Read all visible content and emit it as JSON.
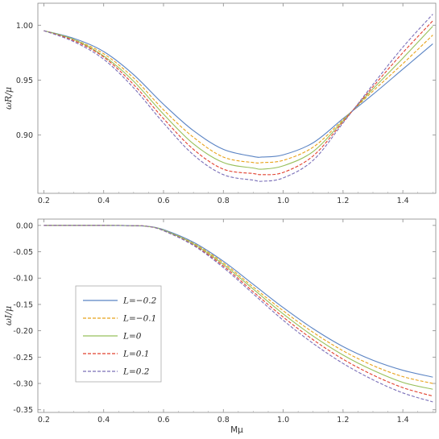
{
  "chart_data": [
    {
      "type": "line",
      "xlabel": "",
      "ylabel": "ωR/μ",
      "xlim": [
        0.18,
        1.51
      ],
      "ylim": [
        0.847,
        1.02
      ],
      "x_ticks": [
        0.2,
        0.4,
        0.6,
        0.8,
        1.0,
        1.2,
        1.4
      ],
      "x_tick_labels": [
        "0.2",
        "0.4",
        "0.6",
        "0.8",
        "1.0",
        "1.2",
        "1.4"
      ],
      "y_ticks": [
        0.9,
        0.95,
        1.0
      ],
      "y_tick_labels": [
        "0.90",
        "0.95",
        "1.00"
      ],
      "grid": false,
      "series": [
        {
          "name": "L=−0.2",
          "color": "#5b84c4",
          "dash": "solid",
          "x": [
            0.2,
            0.3,
            0.4,
            0.5,
            0.6,
            0.7,
            0.8,
            0.9,
            0.93,
            1.0,
            1.1,
            1.2,
            1.3,
            1.4,
            1.5
          ],
          "y": [
            0.995,
            0.988,
            0.976,
            0.955,
            0.928,
            0.904,
            0.887,
            0.8805,
            0.88,
            0.882,
            0.893,
            0.915,
            0.937,
            0.96,
            0.983
          ]
        },
        {
          "name": "L=−0.1",
          "color": "#e8a21a",
          "dash": "4,2",
          "x": [
            0.2,
            0.3,
            0.4,
            0.5,
            0.6,
            0.7,
            0.8,
            0.9,
            0.93,
            1.0,
            1.1,
            1.2,
            1.3,
            1.4,
            1.5
          ],
          "y": [
            0.995,
            0.987,
            0.974,
            0.952,
            0.923,
            0.898,
            0.88,
            0.875,
            0.875,
            0.877,
            0.889,
            0.914,
            0.94,
            0.965,
            0.991
          ]
        },
        {
          "name": "L=0",
          "color": "#98c05c",
          "dash": "solid",
          "x": [
            0.2,
            0.3,
            0.4,
            0.5,
            0.6,
            0.7,
            0.8,
            0.9,
            0.93,
            1.0,
            1.1,
            1.2,
            1.3,
            1.4,
            1.5
          ],
          "y": [
            0.995,
            0.987,
            0.972,
            0.949,
            0.919,
            0.892,
            0.875,
            0.87,
            0.869,
            0.872,
            0.885,
            0.913,
            0.942,
            0.97,
            0.999
          ]
        },
        {
          "name": "L=0.1",
          "color": "#e2402e",
          "dash": "4,2",
          "x": [
            0.2,
            0.3,
            0.4,
            0.5,
            0.6,
            0.7,
            0.8,
            0.9,
            0.93,
            1.0,
            1.1,
            1.2,
            1.3,
            1.4,
            1.5
          ],
          "y": [
            0.995,
            0.986,
            0.971,
            0.946,
            0.915,
            0.887,
            0.869,
            0.865,
            0.864,
            0.866,
            0.881,
            0.912,
            0.944,
            0.975,
            1.004
          ]
        },
        {
          "name": "L=0.2",
          "color": "#7a6fb8",
          "dash": "4,2",
          "x": [
            0.2,
            0.3,
            0.4,
            0.5,
            0.6,
            0.7,
            0.8,
            0.9,
            0.93,
            1.0,
            1.1,
            1.2,
            1.3,
            1.4,
            1.5
          ],
          "y": [
            0.995,
            0.985,
            0.969,
            0.943,
            0.911,
            0.882,
            0.864,
            0.859,
            0.858,
            0.861,
            0.877,
            0.911,
            0.946,
            0.98,
            1.01
          ]
        }
      ]
    },
    {
      "type": "line",
      "xlabel": "Mμ",
      "ylabel": "ωI/μ",
      "xlim": [
        0.18,
        1.51
      ],
      "ylim": [
        -0.355,
        0.012
      ],
      "x_ticks": [
        0.2,
        0.4,
        0.6,
        0.8,
        1.0,
        1.2,
        1.4
      ],
      "x_tick_labels": [
        "0.2",
        "0.4",
        "0.6",
        "0.8",
        "1.0",
        "1.2",
        "1.4"
      ],
      "y_ticks": [
        0.0,
        -0.05,
        -0.1,
        -0.15,
        -0.2,
        -0.25,
        -0.3,
        -0.35
      ],
      "y_tick_labels": [
        "0.00",
        "-0.05",
        "-0.10",
        "-0.15",
        "-0.20",
        "-0.25",
        "-0.30",
        "-0.35"
      ],
      "grid": false,
      "legend": {
        "placement": "bottom-left"
      },
      "series": [
        {
          "name": "L=−0.2",
          "color": "#5b84c4",
          "dash": "solid",
          "x": [
            0.2,
            0.3,
            0.4,
            0.5,
            0.55,
            0.6,
            0.7,
            0.8,
            0.9,
            1.0,
            1.1,
            1.2,
            1.3,
            1.4,
            1.5
          ],
          "y": [
            0.0,
            0.0,
            0.0,
            -0.0005,
            -0.002,
            -0.008,
            -0.032,
            -0.068,
            -0.112,
            -0.156,
            -0.196,
            -0.23,
            -0.256,
            -0.275,
            -0.288
          ]
        },
        {
          "name": "L=−0.1",
          "color": "#e8a21a",
          "dash": "4,2",
          "x": [
            0.2,
            0.3,
            0.4,
            0.5,
            0.55,
            0.6,
            0.7,
            0.8,
            0.9,
            1.0,
            1.1,
            1.2,
            1.3,
            1.4,
            1.5
          ],
          "y": [
            0.0,
            0.0,
            0.0,
            -0.0005,
            -0.002,
            -0.009,
            -0.034,
            -0.071,
            -0.117,
            -0.162,
            -0.203,
            -0.238,
            -0.266,
            -0.287,
            -0.3
          ]
        },
        {
          "name": "L=0",
          "color": "#98c05c",
          "dash": "solid",
          "x": [
            0.2,
            0.3,
            0.4,
            0.5,
            0.55,
            0.6,
            0.7,
            0.8,
            0.9,
            1.0,
            1.1,
            1.2,
            1.3,
            1.4,
            1.5
          ],
          "y": [
            0.0,
            0.0,
            0.0,
            -0.0005,
            -0.002,
            -0.009,
            -0.035,
            -0.074,
            -0.121,
            -0.168,
            -0.21,
            -0.246,
            -0.275,
            -0.298,
            -0.311
          ]
        },
        {
          "name": "L=0.1",
          "color": "#e2402e",
          "dash": "4,2",
          "x": [
            0.2,
            0.3,
            0.4,
            0.5,
            0.55,
            0.6,
            0.7,
            0.8,
            0.9,
            1.0,
            1.1,
            1.2,
            1.3,
            1.4,
            1.5
          ],
          "y": [
            0.0,
            0.0,
            0.0,
            -0.0005,
            -0.002,
            -0.01,
            -0.037,
            -0.077,
            -0.126,
            -0.174,
            -0.217,
            -0.254,
            -0.284,
            -0.308,
            -0.324
          ]
        },
        {
          "name": "L=0.2",
          "color": "#7a6fb8",
          "dash": "4,2",
          "x": [
            0.2,
            0.3,
            0.4,
            0.5,
            0.55,
            0.6,
            0.7,
            0.8,
            0.9,
            1.0,
            1.1,
            1.2,
            1.3,
            1.4,
            1.5
          ],
          "y": [
            0.0,
            0.0,
            0.0,
            -0.0005,
            -0.002,
            -0.01,
            -0.038,
            -0.08,
            -0.13,
            -0.18,
            -0.224,
            -0.262,
            -0.293,
            -0.318,
            -0.335
          ]
        }
      ]
    }
  ]
}
